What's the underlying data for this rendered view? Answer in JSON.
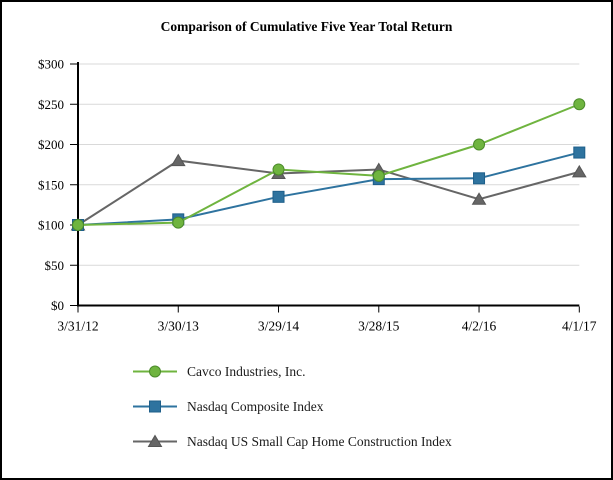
{
  "figure": {
    "border_color": "#000000",
    "background_color": "#ffffff"
  },
  "chart_data": {
    "type": "line",
    "title": "Comparison of Cumulative Five Year Total Return",
    "categories": [
      "3/31/12",
      "3/30/13",
      "3/29/14",
      "3/28/15",
      "4/2/16",
      "4/1/17"
    ],
    "series": [
      {
        "name": "Cavco Industries, Inc.",
        "values": [
          100,
          103,
          169,
          161,
          200,
          250
        ],
        "color": "#6FB43F",
        "marker_stroke": "#4C8B2B",
        "marker": "circle"
      },
      {
        "name": "Nasdaq Composite Index",
        "values": [
          100,
          107,
          135,
          157,
          158,
          190
        ],
        "color": "#2E739F",
        "marker_stroke": "#1E5F8A",
        "marker": "square"
      },
      {
        "name": "Nasdaq US Small Cap Home Construction Index",
        "values": [
          100,
          180,
          164,
          169,
          132,
          166
        ],
        "color": "#666666",
        "marker_stroke": "#555555",
        "marker": "triangle"
      }
    ],
    "xlabel": "",
    "ylabel": "",
    "ylim": [
      0,
      300
    ],
    "y_ticks": [
      0,
      50,
      100,
      150,
      200,
      250,
      300
    ],
    "y_tick_labels": [
      "$0",
      "$50",
      "$100",
      "$150",
      "$200",
      "$250",
      "$300"
    ],
    "grid": "horizontal",
    "grid_color": "#D9D9D9",
    "axis_color": "#000000",
    "legend_position": "bottom-left"
  }
}
